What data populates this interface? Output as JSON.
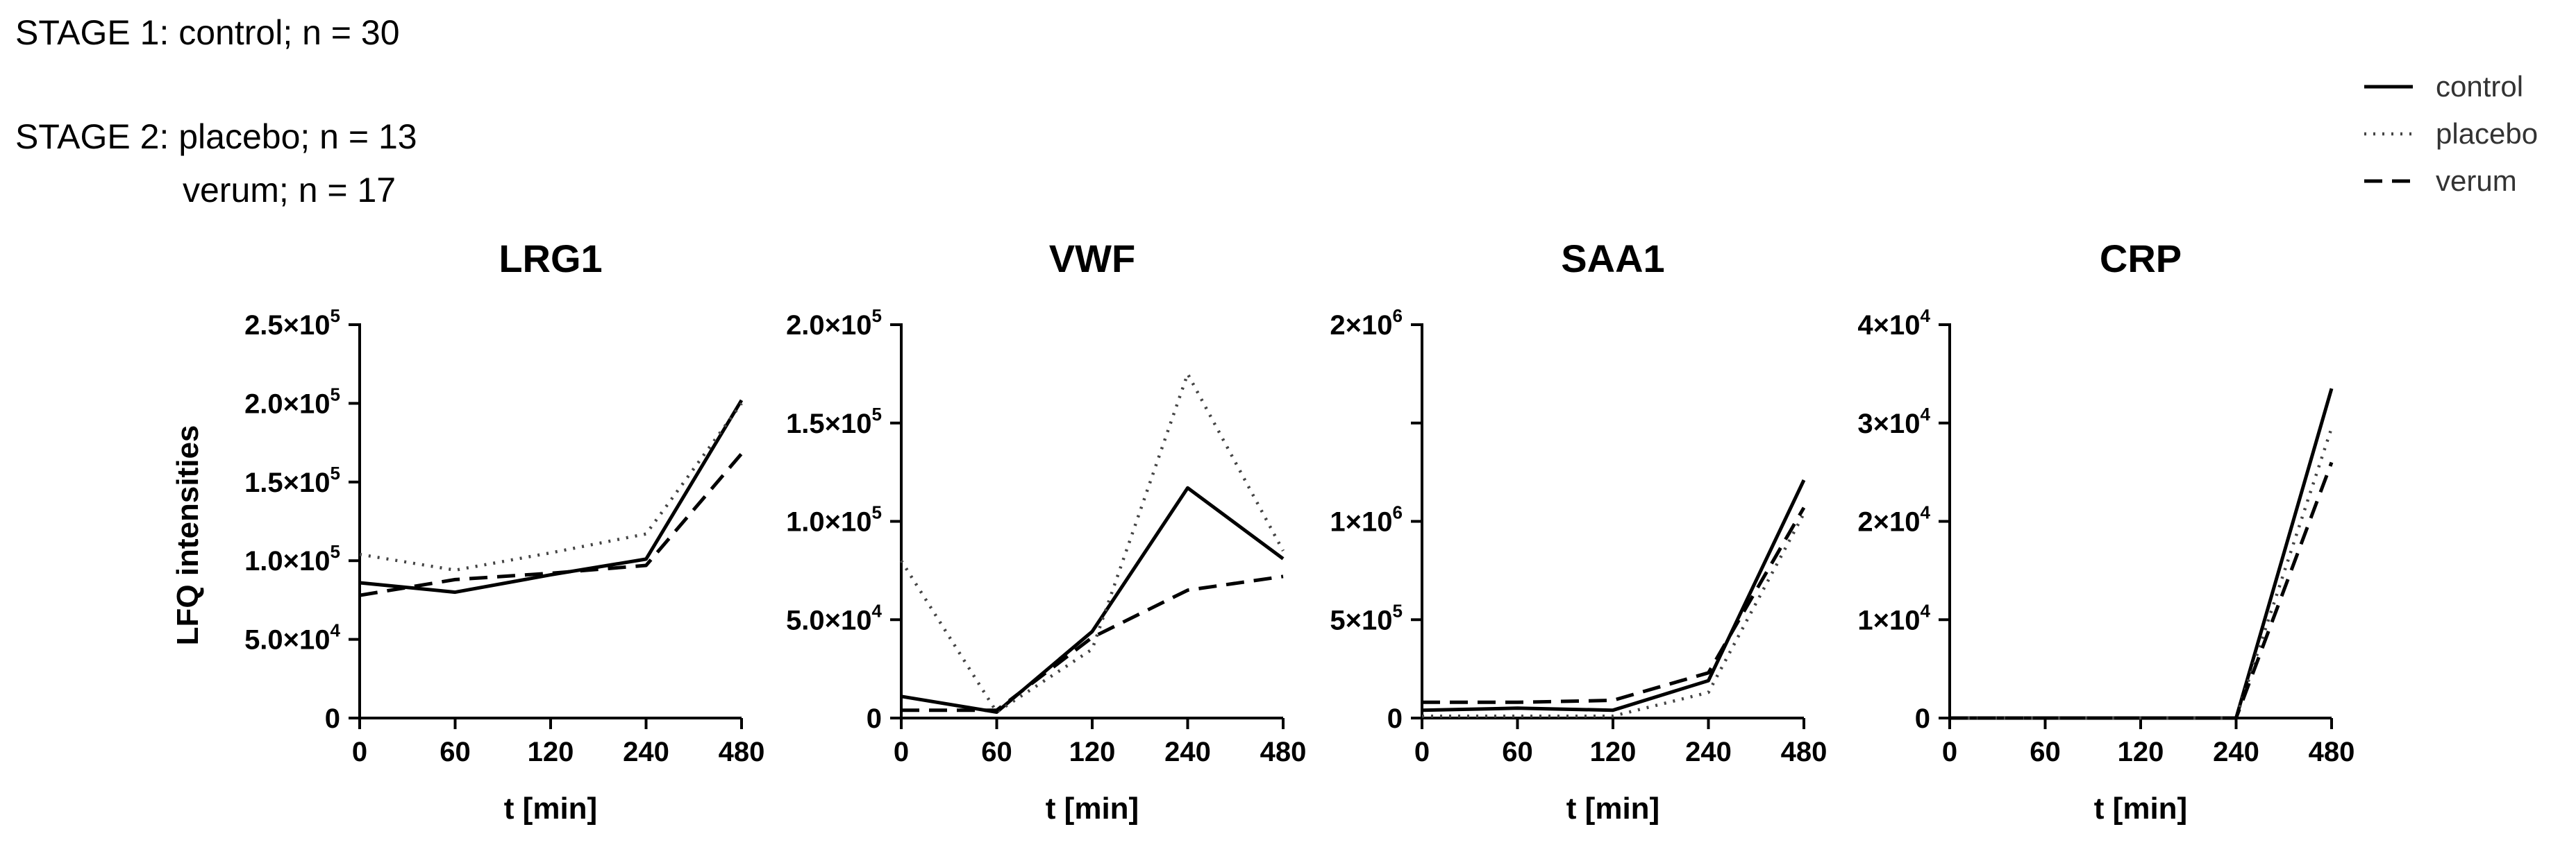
{
  "header": {
    "stage1": "STAGE 1: control; n = 30",
    "stage2_line1": "STAGE 2: placebo; n = 13",
    "stage2_line2": "verum; n = 17"
  },
  "legend": [
    {
      "name": "control",
      "style": "solid"
    },
    {
      "name": "placebo",
      "style": "dotted"
    },
    {
      "name": "verum",
      "style": "dashed"
    }
  ],
  "colors": {
    "line": "#000000",
    "placebo_line": "#444444"
  },
  "chart_data": [
    {
      "type": "line",
      "title": "LRG1",
      "xlabel": "t [min]",
      "ylabel": "LFQ intensities",
      "categories": [
        "0",
        "60",
        "120",
        "240",
        "480"
      ],
      "ylim": [
        0,
        250000
      ],
      "yticks": [
        0,
        50000,
        100000,
        150000,
        200000,
        250000
      ],
      "ytick_labels": [
        {
          "m": "0",
          "e": ""
        },
        {
          "m": "5.0×10",
          "e": "4"
        },
        {
          "m": "1.0×10",
          "e": "5"
        },
        {
          "m": "1.5×10",
          "e": "5"
        },
        {
          "m": "2.0×10",
          "e": "5"
        },
        {
          "m": "2.5×10",
          "e": "5"
        }
      ],
      "series": [
        {
          "name": "control",
          "values": [
            86000,
            80000,
            91000,
            101000,
            202000
          ]
        },
        {
          "name": "placebo",
          "values": [
            104000,
            94000,
            105000,
            117000,
            200000
          ]
        },
        {
          "name": "verum",
          "values": [
            78000,
            88000,
            92000,
            97000,
            168000
          ]
        }
      ]
    },
    {
      "type": "line",
      "title": "VWF",
      "xlabel": "t [min]",
      "ylabel": "",
      "categories": [
        "0",
        "60",
        "120",
        "240",
        "480"
      ],
      "ylim": [
        0,
        200000
      ],
      "yticks": [
        0,
        50000,
        100000,
        150000,
        200000
      ],
      "ytick_labels": [
        {
          "m": "0",
          "e": ""
        },
        {
          "m": "5.0×10",
          "e": "4"
        },
        {
          "m": "1.0×10",
          "e": "5"
        },
        {
          "m": "1.5×10",
          "e": "5"
        },
        {
          "m": "2.0×10",
          "e": "5"
        }
      ],
      "series": [
        {
          "name": "control",
          "values": [
            11000,
            3000,
            44000,
            117000,
            81000
          ]
        },
        {
          "name": "placebo",
          "values": [
            80000,
            3000,
            35000,
            175000,
            85000
          ]
        },
        {
          "name": "verum",
          "values": [
            4000,
            4000,
            41000,
            65000,
            72000
          ]
        }
      ]
    },
    {
      "type": "line",
      "title": "SAA1",
      "xlabel": "t [min]",
      "ylabel": "",
      "categories": [
        "0",
        "60",
        "120",
        "240",
        "480"
      ],
      "ylim": [
        0,
        2000000
      ],
      "yticks": [
        0,
        500000,
        1000000,
        1500000,
        2000000
      ],
      "ytick_labels": [
        {
          "m": "0",
          "e": ""
        },
        {
          "m": "5×10",
          "e": "5"
        },
        {
          "m": "1×10",
          "e": "6"
        },
        {
          "m": "",
          "e": ""
        },
        {
          "m": "2×10",
          "e": "6"
        }
      ],
      "series": [
        {
          "name": "control",
          "values": [
            40000,
            50000,
            40000,
            190000,
            1210000
          ]
        },
        {
          "name": "placebo",
          "values": [
            10000,
            10000,
            10000,
            130000,
            1040000
          ]
        },
        {
          "name": "verum",
          "values": [
            80000,
            80000,
            90000,
            230000,
            1070000
          ]
        }
      ]
    },
    {
      "type": "line",
      "title": "CRP",
      "xlabel": "t [min]",
      "ylabel": "",
      "categories": [
        "0",
        "60",
        "120",
        "240",
        "480"
      ],
      "ylim": [
        0,
        40000
      ],
      "yticks": [
        0,
        10000,
        20000,
        30000,
        40000
      ],
      "ytick_labels": [
        {
          "m": "0",
          "e": ""
        },
        {
          "m": "1×10",
          "e": "4"
        },
        {
          "m": "2×10",
          "e": "4"
        },
        {
          "m": "3×10",
          "e": "4"
        },
        {
          "m": "4×10",
          "e": "4"
        }
      ],
      "series": [
        {
          "name": "control",
          "values": [
            0,
            0,
            0,
            0,
            33500
          ]
        },
        {
          "name": "placebo",
          "values": [
            0,
            0,
            0,
            0,
            29500
          ]
        },
        {
          "name": "verum",
          "values": [
            0,
            0,
            0,
            0,
            26000
          ]
        }
      ]
    }
  ]
}
